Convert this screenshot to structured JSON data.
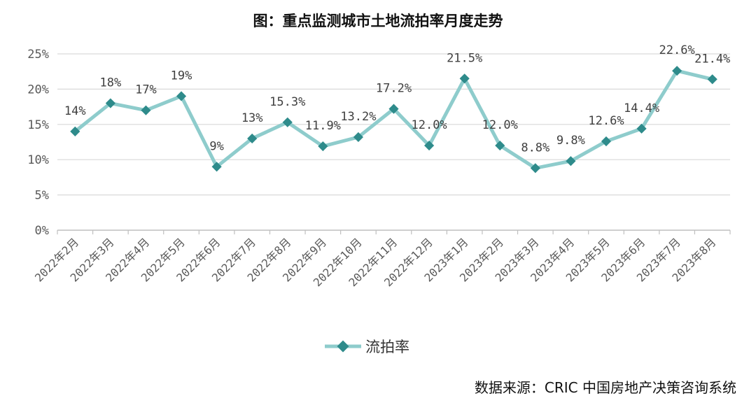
{
  "chart_data": {
    "type": "line",
    "title": "图：重点监测城市土地流拍率月度走势",
    "categories": [
      "2022年2月",
      "2022年3月",
      "2022年4月",
      "2022年5月",
      "2022年6月",
      "2022年7月",
      "2022年8月",
      "2022年9月",
      "2022年10月",
      "2022年11月",
      "2022年12月",
      "2023年1月",
      "2023年2月",
      "2023年3月",
      "2023年4月",
      "2023年5月",
      "2023年6月",
      "2023年7月",
      "2023年8月"
    ],
    "series": [
      {
        "name": "流拍率",
        "values": [
          14,
          18,
          17,
          19,
          9,
          13,
          15.3,
          11.9,
          13.2,
          17.2,
          12.0,
          21.5,
          12.0,
          8.8,
          9.8,
          12.6,
          14.4,
          22.6,
          21.4
        ],
        "labels": [
          "14%",
          "18%",
          "17%",
          "19%",
          "9%",
          "13%",
          "15.3%",
          "11.9%",
          "13.2%",
          "17.2%",
          "12.0%",
          "21.5%",
          "12.0%",
          "8.8%",
          "9.8%",
          "12.6%",
          "14.4%",
          "22.6%",
          "21.4%"
        ],
        "color": "#8ecccc",
        "marker_color": "#2e8b8b"
      }
    ],
    "y_ticks": [
      "0%",
      "5%",
      "10%",
      "15%",
      "20%",
      "25%"
    ],
    "ylim": [
      0,
      25
    ],
    "xlabel": "",
    "ylabel": "",
    "grid": true,
    "legend_position": "bottom"
  },
  "source": "数据来源：CRIC 中国房地产决策咨询系统"
}
